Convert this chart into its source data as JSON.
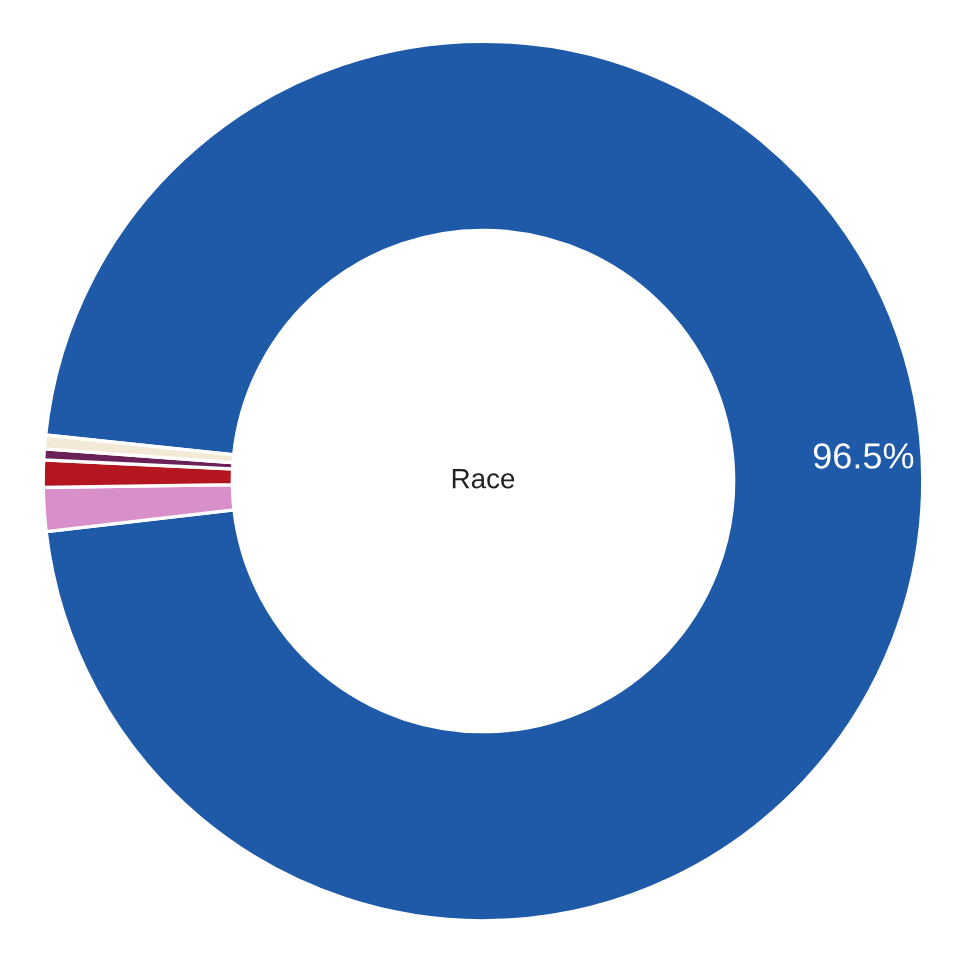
{
  "chart_data": {
    "type": "donut",
    "title": "Race",
    "categories": [
      null,
      null,
      null,
      null,
      null
    ],
    "values": [
      96.5,
      1.6,
      1.0,
      0.4,
      0.5
    ],
    "colors": [
      "#1f5aa8",
      "#d98fc9",
      "#b3161e",
      "#6a2157",
      "#f2ead6"
    ],
    "value_labels": [
      "96.5%",
      null,
      null,
      null,
      null
    ]
  }
}
